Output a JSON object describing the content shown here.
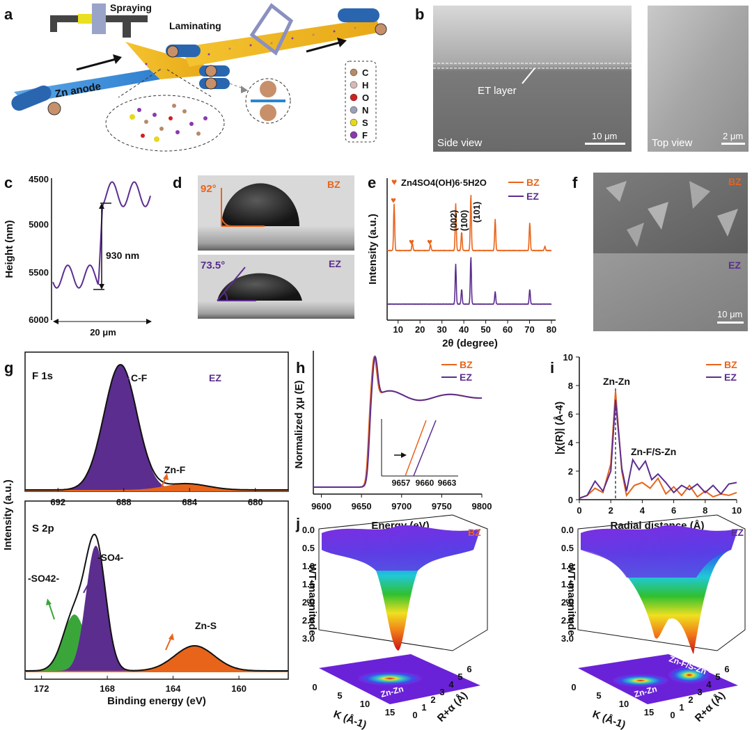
{
  "colors": {
    "bz": "#e8641a",
    "ez": "#5b2d8e",
    "green": "#3aa63a",
    "axis": "#111111"
  },
  "panel_labels": [
    "a",
    "b",
    "c",
    "d",
    "e",
    "f",
    "g",
    "h",
    "i",
    "j"
  ],
  "panel_a": {
    "spraying": "Spraying",
    "laminating": "Laminating",
    "zn_anode": "Zn anode",
    "legend": [
      {
        "symbol": "C",
        "color": "#b58a6a"
      },
      {
        "symbol": "H",
        "color": "#d9b8b8"
      },
      {
        "symbol": "O",
        "color": "#d02020"
      },
      {
        "symbol": "N",
        "color": "#9aa0b8"
      },
      {
        "symbol": "S",
        "color": "#e8d81c"
      },
      {
        "symbol": "F",
        "color": "#8a3ab0"
      }
    ]
  },
  "panel_b": {
    "et_layer": "ET layer",
    "side_view": "Side view",
    "top_view": "Top view",
    "scale_side": "10 μm",
    "scale_top": "2 μm"
  },
  "panel_c": {
    "ylabel": "Height (nm)",
    "yticks": [
      "4500",
      "5000",
      "5500",
      "6000"
    ],
    "xlabel": "20 μm",
    "annotation": "930 nm"
  },
  "panel_d": {
    "bz_angle": "92°",
    "ez_angle": "73.5°",
    "bz": "BZ",
    "ez": "EZ"
  },
  "panel_e": {
    "marker_label": "Zn4SO4(OH)6·5H2O",
    "peaks": [
      "(002)",
      "(100)",
      "(101)"
    ]
  },
  "panel_f": {
    "bz": "BZ",
    "ez": "EZ",
    "scale": "10 μm"
  },
  "panel_g": {
    "f1s": "F 1s",
    "s2p": "S 2p",
    "ez": "EZ",
    "cf": "C-F",
    "znf": "Zn-F",
    "so4": "-SO4-",
    "so42": "-SO42-",
    "zns": "Zn-S"
  },
  "panel_h": {
    "inset_ticks": [
      "9657",
      "9660",
      "9663"
    ]
  },
  "panel_i": {
    "znzn": "Zn-Zn",
    "znfs": "Zn-F/S-Zn"
  },
  "panel_j": {
    "bz": "BZ",
    "ez": "EZ",
    "zlabel": "WT-magnitude",
    "zticks": [
      "0.0",
      "0.5",
      "1.0",
      "1.5",
      "2.0",
      "2.5",
      "3.0"
    ],
    "kticks": [
      "0",
      "5",
      "10",
      "15"
    ],
    "rticks": [
      "0",
      "1",
      "2",
      "3",
      "4",
      "5",
      "6"
    ],
    "klabel": "K (Å-1)",
    "rlabel": "R+α (Å)",
    "znzn": "Zn-Zn",
    "znfs": "Zn-F/S-Zn"
  },
  "chart_data": [
    {
      "type": "line",
      "title": "c",
      "xlabel": "20 μm",
      "ylabel": "Height (nm)",
      "ylim": [
        4500,
        6000
      ],
      "yticks": [
        4500,
        5000,
        5500,
        6000
      ],
      "annotation": "930 nm step height"
    },
    {
      "type": "line",
      "title": "e",
      "xlabel": "2θ (degree)",
      "ylabel": "Intensity (a.u.)",
      "xlim": [
        5,
        80
      ],
      "xticks": [
        10,
        20,
        30,
        40,
        50,
        60,
        70,
        80
      ],
      "series": [
        {
          "name": "BZ",
          "peaks_2theta": [
            8.2,
            16.5,
            24.8,
            36.3,
            39.0,
            43.2,
            54.3,
            70.1,
            77.0
          ],
          "relative_height": [
            0.75,
            0.12,
            0.1,
            0.75,
            0.3,
            0.9,
            0.5,
            0.45,
            0.07
          ]
        },
        {
          "name": "EZ",
          "peaks_2theta": [
            36.3,
            39.0,
            43.2,
            54.3,
            70.1
          ],
          "relative_height": [
            0.8,
            0.3,
            0.95,
            0.25,
            0.3
          ]
        }
      ],
      "legend": [
        "BZ",
        "EZ"
      ]
    },
    {
      "type": "line",
      "title": "g - F 1s",
      "xlabel": "",
      "ylabel": "Intensity (a.u.)",
      "xlim": [
        694,
        678
      ],
      "xticks": [
        692,
        688,
        684,
        680
      ],
      "components": [
        {
          "name": "C-F",
          "center": 688.2,
          "height": 1.0
        },
        {
          "name": "Zn-F",
          "center": 684.2,
          "height": 0.05
        }
      ]
    },
    {
      "type": "line",
      "title": "g - S 2p",
      "xlabel": "Binding energy (eV)",
      "ylabel": "Intensity (a.u.)",
      "xlim": [
        173,
        157
      ],
      "xticks": [
        172,
        168,
        164,
        160
      ],
      "components": [
        {
          "name": "-SO42-",
          "center": 170.0,
          "height": 0.45
        },
        {
          "name": "-SO4-",
          "center": 168.7,
          "height": 1.0
        },
        {
          "name": "Zn-S",
          "center": 162.7,
          "height": 0.2
        }
      ]
    },
    {
      "type": "line",
      "title": "h",
      "xlabel": "Energy (eV)",
      "ylabel": "Normalized χμ (E)",
      "xlim": [
        9590,
        9800
      ],
      "xticks": [
        9600,
        9650,
        9700,
        9750,
        9800
      ],
      "series": [
        {
          "name": "BZ",
          "edge_eV": 9658.5
        },
        {
          "name": "EZ",
          "edge_eV": 9659.5
        }
      ],
      "inset": {
        "xticks": [
          9657,
          9660,
          9663
        ]
      },
      "legend": [
        "BZ",
        "EZ"
      ]
    },
    {
      "type": "line",
      "title": "i",
      "xlabel": "Radial distance (Å)",
      "ylabel": "|χ(R)| (Å-4)",
      "xlim": [
        0,
        10
      ],
      "ylim": [
        0,
        10
      ],
      "xticks": [
        0,
        2,
        4,
        6,
        8,
        10
      ],
      "yticks": [
        0,
        2,
        4,
        6,
        8,
        10
      ],
      "series": [
        {
          "name": "BZ",
          "x": [
            0,
            0.5,
            1,
            1.5,
            2,
            2.3,
            2.7,
            3,
            3.5,
            4,
            4.5,
            5,
            5.5,
            6,
            6.5,
            7,
            7.5,
            8,
            8.5,
            9,
            9.5,
            10
          ],
          "y": [
            0.1,
            0.3,
            0.8,
            0.5,
            2.5,
            7.6,
            2.0,
            0.3,
            1.0,
            1.2,
            0.8,
            1.5,
            0.4,
            0.9,
            0.3,
            1.0,
            0.2,
            0.6,
            0.2,
            0.4,
            0.3,
            0.5
          ]
        },
        {
          "name": "EZ",
          "x": [
            0,
            0.5,
            1,
            1.5,
            2,
            2.3,
            2.7,
            3,
            3.4,
            3.8,
            4.2,
            4.6,
            5,
            5.5,
            6,
            6.5,
            7,
            7.5,
            8,
            8.5,
            9,
            9.5,
            10
          ],
          "y": [
            0.1,
            0.3,
            1.3,
            0.6,
            2.0,
            7.0,
            2.2,
            0.6,
            2.8,
            2.1,
            2.7,
            1.4,
            1.8,
            1.2,
            0.5,
            1.0,
            0.7,
            1.1,
            0.5,
            1.0,
            0.4,
            1.1,
            1.2
          ]
        }
      ],
      "annotations": [
        "Zn-Zn",
        "Zn-F/S-Zn"
      ],
      "legend": [
        "BZ",
        "EZ"
      ]
    }
  ]
}
